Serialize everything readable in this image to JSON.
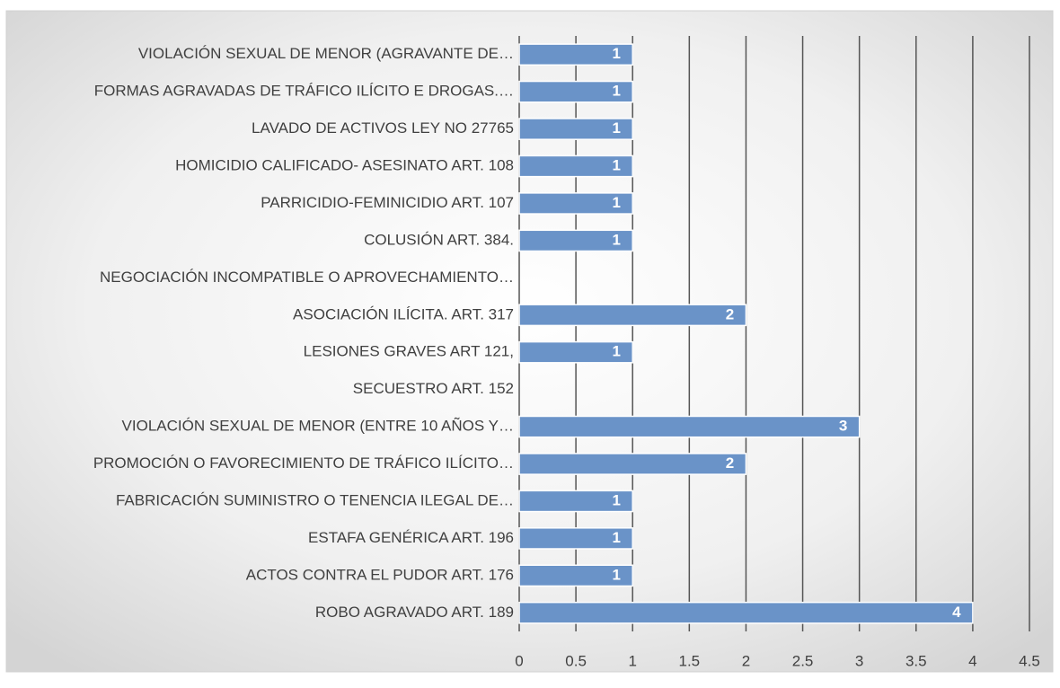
{
  "chart_data": {
    "type": "bar",
    "orientation": "horizontal",
    "categories": [
      "VIOLACIÓN SEXUAL DE MENOR (AGRAVANTE DE…",
      "FORMAS AGRAVADAS DE TRÁFICO ILÍCITO E DROGAS.…",
      "LAVADO DE ACTIVOS LEY NO 27765",
      "HOMICIDIO CALIFICADO- ASESINATO ART. 108",
      "PARRICIDIO-FEMINICIDIO ART. 107",
      "COLUSIÓN ART. 384.",
      "NEGOCIACIÓN INCOMPATIBLE O APROVECHAMIENTO…",
      "ASOCIACIÓN ILÍCITA. ART. 317",
      "LESIONES GRAVES ART 121,",
      "SECUESTRO ART. 152",
      "VIOLACIÓN SEXUAL DE MENOR (ENTRE  10 AÑOS Y…",
      "PROMOCIÓN O FAVORECIMIENTO DE TRÁFICO ILÍCITO…",
      "FABRICACIÓN SUMINISTRO O TENENCIA ILEGAL DE…",
      "ESTAFA GENÉRICA ART. 196",
      "ACTOS CONTRA EL PUDOR ART. 176",
      "ROBO AGRAVADO ART. 189"
    ],
    "values": [
      1,
      1,
      1,
      1,
      1,
      1,
      null,
      2,
      1,
      null,
      3,
      2,
      1,
      1,
      1,
      4
    ],
    "color": "#6a93c8",
    "xlim": [
      0,
      4.5
    ],
    "xticks": [
      0,
      0.5,
      1,
      1.5,
      2,
      2.5,
      3,
      3.5,
      4,
      4.5
    ],
    "grid": true
  }
}
